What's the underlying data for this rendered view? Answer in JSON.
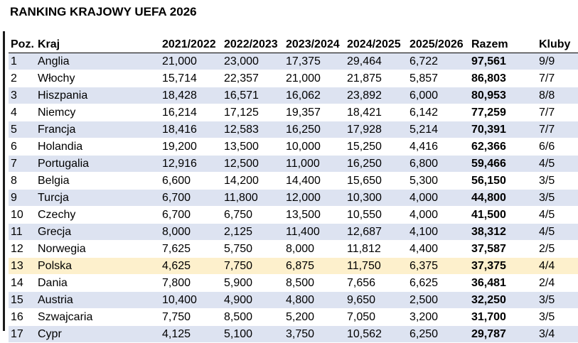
{
  "title": "RANKING KRAJOWY UEFA 2026",
  "colors": {
    "row_shade": "#dde3f1",
    "row_plain": "#ffffff",
    "highlight": "#fdf0cc"
  },
  "table": {
    "headers": [
      "Poz.",
      "Kraj",
      "2021/2022",
      "2022/2023",
      "2023/2024",
      "2024/2025",
      "2025/2026",
      "Razem",
      "Kluby"
    ],
    "highlight_country": "Polska",
    "rows": [
      [
        "1",
        "Anglia",
        "21,000",
        "23,000",
        "17,375",
        "29,464",
        "6,722",
        "97,561",
        "9/9"
      ],
      [
        "2",
        "Włochy",
        "15,714",
        "22,357",
        "21,000",
        "21,875",
        "5,857",
        "86,803",
        "7/7"
      ],
      [
        "3",
        "Hiszpania",
        "18,428",
        "16,571",
        "16,062",
        "23,892",
        "6,000",
        "80,953",
        "8/8"
      ],
      [
        "4",
        "Niemcy",
        "16,214",
        "17,125",
        "19,357",
        "18,421",
        "6,142",
        "77,259",
        "7/7"
      ],
      [
        "5",
        "Francja",
        "18,416",
        "12,583",
        "16,250",
        "17,928",
        "5,214",
        "70,391",
        "7/7"
      ],
      [
        "6",
        "Holandia",
        "19,200",
        "13,500",
        "10,000",
        "15,250",
        "4,416",
        "62,366",
        "6/6"
      ],
      [
        "7",
        "Portugalia",
        "12,916",
        "12,500",
        "11,000",
        "16,250",
        "6,800",
        "59,466",
        "4/5"
      ],
      [
        "8",
        "Belgia",
        "6,600",
        "14,200",
        "14,400",
        "15,650",
        "5,300",
        "56,150",
        "3/5"
      ],
      [
        "9",
        "Turcja",
        "6,700",
        "11,800",
        "12,000",
        "10,300",
        "4,000",
        "44,800",
        "3/5"
      ],
      [
        "10",
        "Czechy",
        "6,700",
        "6,750",
        "13,500",
        "10,550",
        "4,000",
        "41,500",
        "4/5"
      ],
      [
        "11",
        "Grecja",
        "8,000",
        "2,125",
        "11,400",
        "12,687",
        "4,100",
        "38,312",
        "4/5"
      ],
      [
        "12",
        "Norwegia",
        "7,625",
        "5,750",
        "8,000",
        "11,812",
        "4,400",
        "37,587",
        "2/5"
      ],
      [
        "13",
        "Polska",
        "4,625",
        "7,750",
        "6,875",
        "11,750",
        "6,375",
        "37,375",
        "4/4"
      ],
      [
        "14",
        "Dania",
        "7,800",
        "5,900",
        "8,500",
        "7,656",
        "6,625",
        "36,481",
        "2/4"
      ],
      [
        "15",
        "Austria",
        "10,400",
        "4,900",
        "4,800",
        "9,650",
        "2,500",
        "32,250",
        "3/5"
      ],
      [
        "16",
        "Szwajcaria",
        "7,750",
        "8,500",
        "5,200",
        "7,050",
        "3,200",
        "31,700",
        "3/5"
      ],
      [
        "17",
        "Cypr",
        "4,125",
        "5,100",
        "3,750",
        "10,562",
        "6,250",
        "29,787",
        "3/4"
      ]
    ]
  }
}
